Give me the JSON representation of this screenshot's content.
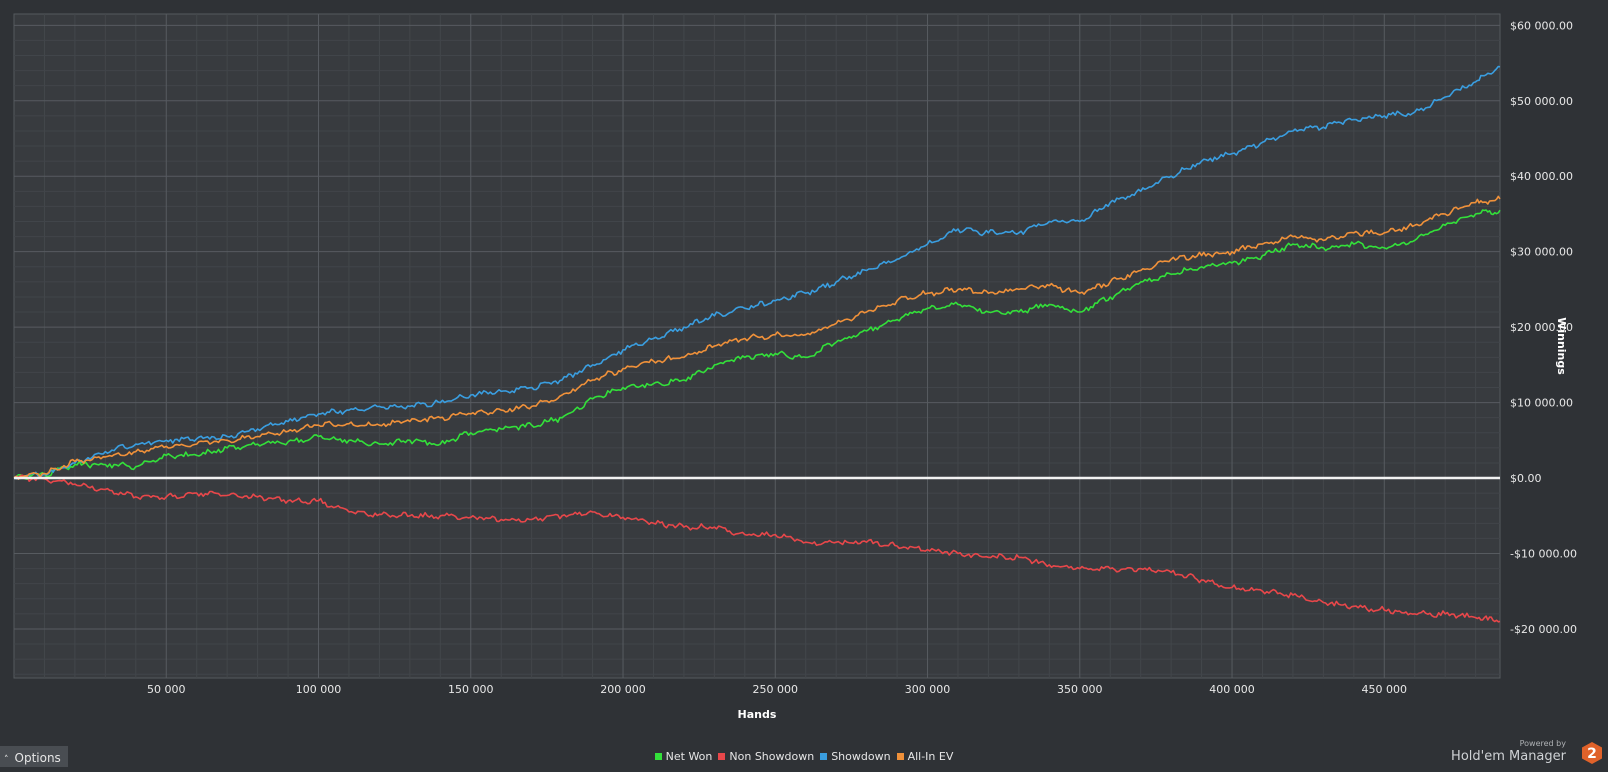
{
  "chart_data": {
    "type": "line",
    "title": "",
    "xlabel": "Hands",
    "ylabel": "Winnings",
    "xlim": [
      0,
      488000
    ],
    "ylim": [
      -26500,
      61500
    ],
    "x_ticks": [
      {
        "value": 50000,
        "label": "50 000"
      },
      {
        "value": 100000,
        "label": "100 000"
      },
      {
        "value": 150000,
        "label": "150 000"
      },
      {
        "value": 200000,
        "label": "200 000"
      },
      {
        "value": 250000,
        "label": "250 000"
      },
      {
        "value": 300000,
        "label": "300 000"
      },
      {
        "value": 350000,
        "label": "350 000"
      },
      {
        "value": 400000,
        "label": "400 000"
      },
      {
        "value": 450000,
        "label": "450 000"
      }
    ],
    "y_ticks": [
      {
        "value": 60000,
        "label": "$60 000.00"
      },
      {
        "value": 50000,
        "label": "$50 000.00"
      },
      {
        "value": 40000,
        "label": "$40 000.00"
      },
      {
        "value": 30000,
        "label": "$30 000.00"
      },
      {
        "value": 20000,
        "label": "$20 000.00"
      },
      {
        "value": 10000,
        "label": "$10 000.00"
      },
      {
        "value": 0,
        "label": "$0.00"
      },
      {
        "value": -10000,
        "label": "-$10 000.00"
      },
      {
        "value": -20000,
        "label": "-$20 000.00"
      }
    ],
    "grid": true,
    "legend_position": "bottom-center",
    "series": [
      {
        "name": "Net Won",
        "color": "#33e03a",
        "points": [
          [
            0,
            0
          ],
          [
            10000,
            500
          ],
          [
            20000,
            1800
          ],
          [
            30000,
            1800
          ],
          [
            40000,
            1500
          ],
          [
            50000,
            3000
          ],
          [
            60000,
            3000
          ],
          [
            70000,
            4000
          ],
          [
            80000,
            4500
          ],
          [
            90000,
            4800
          ],
          [
            100000,
            5500
          ],
          [
            110000,
            5000
          ],
          [
            120000,
            4500
          ],
          [
            130000,
            5000
          ],
          [
            140000,
            4500
          ],
          [
            150000,
            6000
          ],
          [
            160000,
            6500
          ],
          [
            170000,
            7000
          ],
          [
            180000,
            8000
          ],
          [
            190000,
            10500
          ],
          [
            200000,
            12000
          ],
          [
            210000,
            12500
          ],
          [
            220000,
            13000
          ],
          [
            230000,
            15000
          ],
          [
            240000,
            16000
          ],
          [
            250000,
            16500
          ],
          [
            260000,
            16000
          ],
          [
            270000,
            18000
          ],
          [
            280000,
            19500
          ],
          [
            290000,
            21000
          ],
          [
            300000,
            22500
          ],
          [
            310000,
            23000
          ],
          [
            320000,
            22000
          ],
          [
            330000,
            22000
          ],
          [
            340000,
            23000
          ],
          [
            350000,
            22000
          ],
          [
            360000,
            24000
          ],
          [
            370000,
            26000
          ],
          [
            380000,
            27000
          ],
          [
            390000,
            28000
          ],
          [
            400000,
            28500
          ],
          [
            410000,
            29500
          ],
          [
            420000,
            31000
          ],
          [
            430000,
            30500
          ],
          [
            440000,
            31000
          ],
          [
            450000,
            30500
          ],
          [
            460000,
            31500
          ],
          [
            470000,
            33500
          ],
          [
            480000,
            35000
          ],
          [
            488000,
            35500
          ]
        ]
      },
      {
        "name": "Non Showdown",
        "color": "#e8474a",
        "points": [
          [
            0,
            0
          ],
          [
            10000,
            -100
          ],
          [
            20000,
            -800
          ],
          [
            30000,
            -1500
          ],
          [
            40000,
            -2500
          ],
          [
            50000,
            -2500
          ],
          [
            60000,
            -2000
          ],
          [
            70000,
            -2300
          ],
          [
            80000,
            -2500
          ],
          [
            90000,
            -3000
          ],
          [
            100000,
            -3000
          ],
          [
            110000,
            -4500
          ],
          [
            120000,
            -4800
          ],
          [
            130000,
            -5000
          ],
          [
            140000,
            -5000
          ],
          [
            150000,
            -5200
          ],
          [
            160000,
            -5500
          ],
          [
            170000,
            -5500
          ],
          [
            180000,
            -5000
          ],
          [
            190000,
            -4500
          ],
          [
            200000,
            -5200
          ],
          [
            210000,
            -6000
          ],
          [
            220000,
            -6500
          ],
          [
            230000,
            -6500
          ],
          [
            240000,
            -7500
          ],
          [
            250000,
            -7500
          ],
          [
            260000,
            -8500
          ],
          [
            270000,
            -8500
          ],
          [
            280000,
            -8500
          ],
          [
            290000,
            -9000
          ],
          [
            300000,
            -9500
          ],
          [
            310000,
            -10000
          ],
          [
            320000,
            -10500
          ],
          [
            330000,
            -10500
          ],
          [
            340000,
            -11500
          ],
          [
            350000,
            -12000
          ],
          [
            360000,
            -12000
          ],
          [
            370000,
            -12000
          ],
          [
            380000,
            -12500
          ],
          [
            390000,
            -13500
          ],
          [
            400000,
            -14500
          ],
          [
            410000,
            -15000
          ],
          [
            420000,
            -15500
          ],
          [
            430000,
            -16500
          ],
          [
            440000,
            -17000
          ],
          [
            450000,
            -17500
          ],
          [
            460000,
            -18000
          ],
          [
            470000,
            -18000
          ],
          [
            480000,
            -18500
          ],
          [
            488000,
            -19000
          ]
        ]
      },
      {
        "name": "Showdown",
        "color": "#3a9ee0",
        "points": [
          [
            0,
            0
          ],
          [
            10000,
            500
          ],
          [
            20000,
            2000
          ],
          [
            30000,
            3500
          ],
          [
            40000,
            4500
          ],
          [
            50000,
            5000
          ],
          [
            60000,
            5200
          ],
          [
            70000,
            5500
          ],
          [
            80000,
            6500
          ],
          [
            90000,
            7500
          ],
          [
            100000,
            8500
          ],
          [
            110000,
            9000
          ],
          [
            120000,
            9500
          ],
          [
            130000,
            9500
          ],
          [
            140000,
            10000
          ],
          [
            150000,
            11000
          ],
          [
            160000,
            11500
          ],
          [
            170000,
            12000
          ],
          [
            180000,
            13000
          ],
          [
            190000,
            15000
          ],
          [
            200000,
            17000
          ],
          [
            210000,
            18500
          ],
          [
            220000,
            20000
          ],
          [
            230000,
            21500
          ],
          [
            240000,
            22500
          ],
          [
            250000,
            23500
          ],
          [
            260000,
            24500
          ],
          [
            270000,
            26000
          ],
          [
            280000,
            27500
          ],
          [
            290000,
            29000
          ],
          [
            300000,
            31000
          ],
          [
            310000,
            33000
          ],
          [
            320000,
            32500
          ],
          [
            330000,
            32500
          ],
          [
            340000,
            34000
          ],
          [
            350000,
            34000
          ],
          [
            360000,
            36500
          ],
          [
            370000,
            38000
          ],
          [
            380000,
            40000
          ],
          [
            390000,
            42000
          ],
          [
            400000,
            43000
          ],
          [
            410000,
            44500
          ],
          [
            420000,
            46000
          ],
          [
            430000,
            46500
          ],
          [
            440000,
            47500
          ],
          [
            450000,
            48000
          ],
          [
            460000,
            48500
          ],
          [
            470000,
            50500
          ],
          [
            480000,
            52500
          ],
          [
            488000,
            54500
          ]
        ]
      },
      {
        "name": "All-In EV",
        "color": "#f0913a",
        "points": [
          [
            0,
            0
          ],
          [
            10000,
            600
          ],
          [
            20000,
            2200
          ],
          [
            30000,
            2800
          ],
          [
            40000,
            3500
          ],
          [
            50000,
            4200
          ],
          [
            60000,
            4500
          ],
          [
            70000,
            5000
          ],
          [
            80000,
            5500
          ],
          [
            90000,
            6200
          ],
          [
            100000,
            7000
          ],
          [
            110000,
            7200
          ],
          [
            120000,
            7000
          ],
          [
            130000,
            7500
          ],
          [
            140000,
            8000
          ],
          [
            150000,
            8500
          ],
          [
            160000,
            9000
          ],
          [
            170000,
            9500
          ],
          [
            180000,
            11000
          ],
          [
            190000,
            13000
          ],
          [
            200000,
            14500
          ],
          [
            210000,
            15500
          ],
          [
            220000,
            16000
          ],
          [
            230000,
            17500
          ],
          [
            240000,
            18500
          ],
          [
            250000,
            19000
          ],
          [
            260000,
            19000
          ],
          [
            270000,
            20500
          ],
          [
            280000,
            22000
          ],
          [
            290000,
            23500
          ],
          [
            300000,
            24500
          ],
          [
            310000,
            25000
          ],
          [
            320000,
            24500
          ],
          [
            330000,
            25000
          ],
          [
            340000,
            25500
          ],
          [
            350000,
            24500
          ],
          [
            360000,
            26000
          ],
          [
            370000,
            27500
          ],
          [
            380000,
            29000
          ],
          [
            390000,
            29500
          ],
          [
            400000,
            30000
          ],
          [
            410000,
            31000
          ],
          [
            420000,
            32000
          ],
          [
            430000,
            31500
          ],
          [
            440000,
            32500
          ],
          [
            450000,
            32500
          ],
          [
            460000,
            33500
          ],
          [
            470000,
            35000
          ],
          [
            480000,
            36500
          ],
          [
            488000,
            37000
          ]
        ]
      }
    ]
  },
  "ui": {
    "options_label": "Options",
    "brand_powered": "Powered by",
    "brand_name": "Hold'em Manager",
    "brand_badge": "2",
    "accent_color": "#e0622a"
  }
}
